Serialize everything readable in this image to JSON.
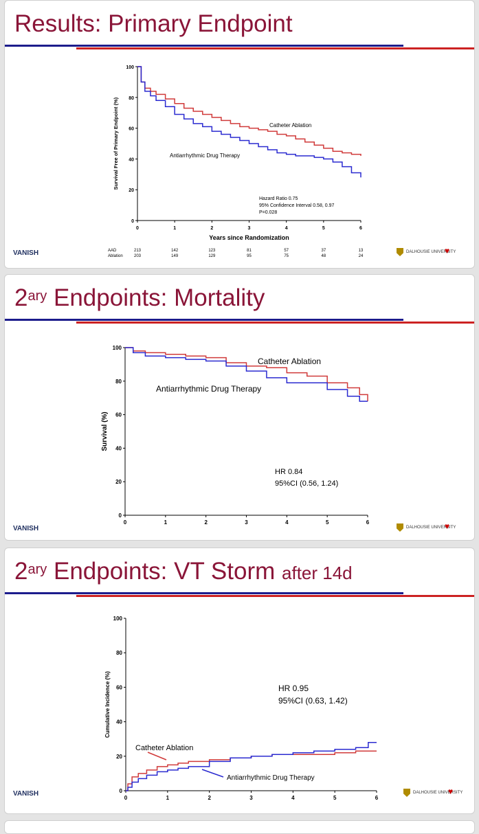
{
  "slides": [
    {
      "title": "Results: Primary Endpoint",
      "footer_left": "VANISH",
      "logos": [
        "DALHOUSIE UNIVERSITY",
        "Maritime Heart Centre"
      ]
    },
    {
      "title_sup_base": "2",
      "title_sup": "ary",
      "title": "Endpoints: Mortality",
      "footer_left": "VANISH",
      "logos": [
        "DALHOUSIE UNIVERSITY",
        "Maritime Heart Centre"
      ]
    },
    {
      "title_sup_base": "2",
      "title_sup": "ary",
      "title": "Endpoints: VT Storm",
      "title_small": "after 14d",
      "footer_left": "VANISH",
      "logos": [
        "DALHOUSIE UNIVERSITY",
        "Maritime Heart Centre"
      ]
    }
  ],
  "colors": {
    "title": "#8a1538",
    "ablation": "#d03a3a",
    "aad": "#2a2ad0",
    "rule_blue": "#1c1c8c",
    "rule_red": "#cc2222"
  },
  "chart_data": [
    {
      "type": "line",
      "title": "",
      "xlabel": "Years since Randomization",
      "ylabel": "Survival Free of Primary Endpoint (%)",
      "xlim": [
        0,
        6
      ],
      "ylim": [
        0,
        100
      ],
      "xticks": [
        0,
        1,
        2,
        3,
        4,
        5,
        6
      ],
      "yticks": [
        0,
        20,
        40,
        60,
        80,
        100
      ],
      "series": [
        {
          "name": "Catheter Ablation",
          "color": "#d03a3a",
          "x": [
            0,
            0.1,
            0.2,
            0.35,
            0.5,
            0.75,
            1,
            1.25,
            1.5,
            1.75,
            2,
            2.25,
            2.5,
            2.75,
            3,
            3.25,
            3.5,
            3.75,
            4,
            4.25,
            4.5,
            4.75,
            5,
            5.25,
            5.5,
            5.75,
            6
          ],
          "y": [
            100,
            90,
            86,
            84,
            82,
            79,
            76,
            73,
            71,
            69,
            67,
            65,
            63,
            61,
            60,
            59,
            58,
            56,
            55,
            53,
            51,
            49,
            47,
            45,
            44,
            43,
            42
          ]
        },
        {
          "name": "Antiarrhythmic Drug Therapy",
          "color": "#2a2ad0",
          "x": [
            0,
            0.1,
            0.2,
            0.35,
            0.5,
            0.75,
            1,
            1.25,
            1.5,
            1.75,
            2,
            2.25,
            2.5,
            2.75,
            3,
            3.25,
            3.5,
            3.75,
            4,
            4.25,
            4.5,
            4.75,
            5,
            5.25,
            5.5,
            5.75,
            6
          ],
          "y": [
            100,
            90,
            84,
            81,
            78,
            74,
            69,
            66,
            63,
            61,
            58,
            56,
            54,
            52,
            50,
            48,
            46,
            44,
            43,
            42,
            42,
            41,
            40,
            38,
            35,
            31,
            28
          ]
        }
      ],
      "annotations": [
        "Catheter Ablation",
        "Antiarrhythmic Drug Therapy",
        "Hazard Ratio 0.75",
        "95% Confidence Interval 0.58, 0.97",
        "P=0.028"
      ],
      "at_risk": {
        "times": [
          0,
          1,
          2,
          3,
          4,
          5,
          6
        ],
        "rows": [
          {
            "label": "AAD",
            "values": [
              213,
              142,
              123,
              81,
              57,
              37,
              13
            ]
          },
          {
            "label": "Ablation",
            "values": [
              203,
              149,
              129,
              95,
              75,
              48,
              24
            ]
          }
        ]
      }
    },
    {
      "type": "line",
      "title": "",
      "xlabel": "",
      "ylabel": "Survival (%)",
      "xlim": [
        0,
        6
      ],
      "ylim": [
        0,
        100
      ],
      "xticks": [
        0,
        1,
        2,
        3,
        4,
        5,
        6
      ],
      "yticks": [
        0,
        20,
        40,
        60,
        80,
        100
      ],
      "series": [
        {
          "name": "Catheter Ablation",
          "color": "#d03a3a",
          "x": [
            0,
            0.2,
            0.5,
            1,
            1.5,
            2,
            2.5,
            3,
            3.5,
            4,
            4.5,
            5,
            5.5,
            5.8,
            6
          ],
          "y": [
            100,
            98,
            97,
            96,
            95,
            94,
            91,
            89,
            88,
            85,
            83,
            79,
            76,
            72,
            68
          ]
        },
        {
          "name": "Antiarrhythmic Drug Therapy",
          "color": "#2a2ad0",
          "x": [
            0,
            0.2,
            0.5,
            1,
            1.5,
            2,
            2.5,
            3,
            3.5,
            4,
            4.5,
            5,
            5.5,
            5.8,
            6
          ],
          "y": [
            100,
            97,
            95,
            94,
            93,
            92,
            89,
            86,
            82,
            79,
            79,
            75,
            71,
            68,
            68
          ]
        }
      ],
      "annotations": [
        "Catheter Ablation",
        "Antiarrhythmic Drug Therapy",
        "HR 0.84",
        "95%CI (0.56, 1.24)"
      ]
    },
    {
      "type": "line",
      "title": "",
      "xlabel": "",
      "ylabel": "Cumulative Incidence (%)",
      "xlim": [
        0,
        6
      ],
      "ylim": [
        0,
        100
      ],
      "xticks": [
        0,
        1,
        2,
        3,
        4,
        5,
        6
      ],
      "yticks": [
        0,
        20,
        40,
        60,
        80,
        100
      ],
      "series": [
        {
          "name": "Catheter Ablation",
          "color": "#d03a3a",
          "x": [
            0,
            0.05,
            0.15,
            0.3,
            0.5,
            0.75,
            1,
            1.25,
            1.5,
            2,
            2.5,
            3,
            3.5,
            4,
            4.5,
            5,
            5.5,
            6
          ],
          "y": [
            0,
            4,
            8,
            10,
            12,
            14,
            15,
            16,
            17,
            18,
            19,
            20,
            21,
            21,
            21,
            22,
            23,
            23
          ]
        },
        {
          "name": "Antiarrhythmic Drug Therapy",
          "color": "#2a2ad0",
          "x": [
            0,
            0.05,
            0.15,
            0.3,
            0.5,
            0.75,
            1,
            1.25,
            1.5,
            2,
            2.5,
            3,
            3.5,
            4,
            4.5,
            5,
            5.5,
            5.8,
            6
          ],
          "y": [
            0,
            2,
            5,
            7,
            9,
            11,
            12,
            13,
            14,
            17,
            19,
            20,
            21,
            22,
            23,
            24,
            25,
            28,
            28
          ]
        }
      ],
      "annotations": [
        "Catheter Ablation",
        "Antiarrhythmic Drug Therapy",
        "HR 0.95",
        "95%CI (0.63, 1.42)"
      ]
    }
  ]
}
